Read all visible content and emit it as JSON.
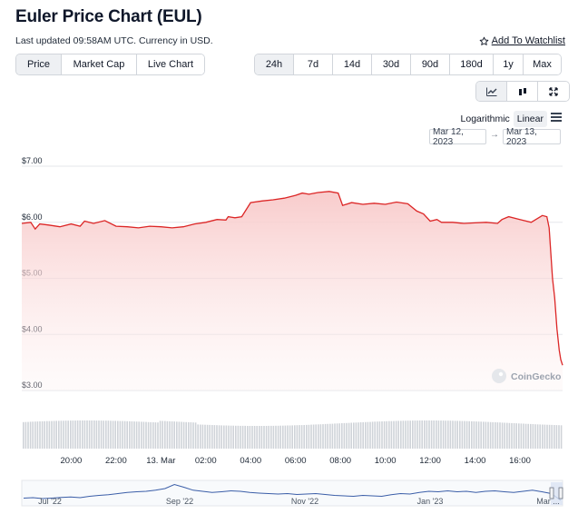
{
  "page": {
    "title": "Euler Price Chart (EUL)",
    "subtitle": "Last updated 09:58AM UTC. Currency in USD.",
    "watchlist_label": "Add To Watchlist"
  },
  "metric_tabs": [
    {
      "label": "Price",
      "active": true
    },
    {
      "label": "Market Cap",
      "active": false
    },
    {
      "label": "Live Chart",
      "active": false
    }
  ],
  "range_tabs": [
    {
      "label": "24h",
      "active": true
    },
    {
      "label": "7d",
      "active": false
    },
    {
      "label": "14d",
      "active": false
    },
    {
      "label": "30d",
      "active": false
    },
    {
      "label": "90d",
      "active": false
    },
    {
      "label": "180d",
      "active": false
    },
    {
      "label": "1y",
      "active": false
    },
    {
      "label": "Max",
      "active": false
    }
  ],
  "chart_type_buttons": [
    {
      "icon": "line-chart-icon",
      "active": true
    },
    {
      "icon": "candlestick-icon",
      "active": false
    },
    {
      "icon": "fullscreen-icon",
      "active": false
    }
  ],
  "scale": {
    "options": [
      {
        "label": "Logarithmic",
        "active": false
      },
      {
        "label": "Linear",
        "active": true
      }
    ]
  },
  "date_range": {
    "from": "Mar 12, 2023",
    "to": "Mar 13, 2023",
    "arrow": "→"
  },
  "watermark": "CoinGecko",
  "colors": {
    "line": "#dc2626",
    "area_top": "#f8c9c9",
    "volume": "#cfd3d8",
    "navigator_line": "#3b5ea8",
    "active_bg": "#eef0f3"
  },
  "chart_data": {
    "type": "area",
    "y_tick_labels": [
      "$7.00",
      "$6.00",
      "$5.00",
      "$4.00",
      "$3.00"
    ],
    "ylim": [
      3,
      7
    ],
    "x_tick_labels": [
      "20:00",
      "22:00",
      "13. Mar",
      "02:00",
      "04:00",
      "06:00",
      "08:00",
      "10:00",
      "12:00",
      "14:00",
      "16:00"
    ],
    "x_hours": [
      -4,
      -2,
      0,
      2,
      4,
      6,
      8,
      10,
      12,
      14,
      16
    ],
    "xlim": [
      -6.2,
      17.9
    ],
    "series": [
      {
        "x": [
          -6.2,
          -5.8,
          -5.6,
          -5.4,
          -5.0,
          -4.5,
          -4.0,
          -3.6,
          -3.4,
          -3.0,
          -2.5,
          -2.0,
          -1.5,
          -1.0,
          -0.5,
          0.0,
          0.5,
          1.0,
          1.5,
          2.0,
          2.5,
          2.9,
          3.0,
          3.3,
          3.6,
          4.0,
          4.5,
          5.0,
          5.5,
          6.0,
          6.3,
          6.6,
          7.0,
          7.5,
          7.9,
          8.1,
          8.5,
          9.0,
          9.5,
          10.0,
          10.5,
          11.0,
          11.4,
          11.7,
          12.0,
          12.3,
          12.5,
          13.0,
          13.5,
          14.0,
          14.5,
          15.0,
          15.2,
          15.5,
          16.0,
          16.5,
          17.0,
          17.2,
          17.3,
          17.45,
          17.55,
          17.65,
          17.75,
          17.82,
          17.9
        ],
        "y": [
          5.98,
          6.0,
          5.88,
          5.97,
          5.95,
          5.92,
          5.97,
          5.93,
          6.02,
          5.98,
          6.03,
          5.93,
          5.92,
          5.9,
          5.93,
          5.92,
          5.9,
          5.92,
          5.97,
          6.0,
          6.05,
          6.04,
          6.1,
          6.08,
          6.1,
          6.35,
          6.38,
          6.4,
          6.43,
          6.48,
          6.52,
          6.5,
          6.53,
          6.55,
          6.52,
          6.3,
          6.35,
          6.32,
          6.34,
          6.32,
          6.36,
          6.33,
          6.2,
          6.15,
          6.02,
          6.05,
          6.0,
          6.0,
          5.98,
          5.99,
          6.0,
          5.98,
          6.05,
          6.1,
          6.05,
          6.0,
          6.12,
          6.1,
          5.9,
          5.0,
          4.65,
          4.1,
          3.72,
          3.55,
          3.45
        ]
      }
    ],
    "navigator_labels": [
      "Jul '22",
      "Sep '22",
      "Nov '22",
      "Jan '23",
      "Mar ..."
    ],
    "navigator_values": [
      0.3,
      0.32,
      0.28,
      0.3,
      0.33,
      0.35,
      0.32,
      0.38,
      0.42,
      0.45,
      0.5,
      0.55,
      0.58,
      0.6,
      0.65,
      0.72,
      0.9,
      0.78,
      0.65,
      0.6,
      0.55,
      0.58,
      0.62,
      0.6,
      0.55,
      0.52,
      0.5,
      0.48,
      0.5,
      0.46,
      0.48,
      0.5,
      0.46,
      0.42,
      0.4,
      0.38,
      0.42,
      0.4,
      0.38,
      0.45,
      0.5,
      0.48,
      0.55,
      0.6,
      0.58,
      0.62,
      0.58,
      0.6,
      0.55,
      0.6,
      0.62,
      0.58,
      0.55,
      0.6,
      0.65,
      0.58,
      0.5,
      0.2
    ]
  }
}
